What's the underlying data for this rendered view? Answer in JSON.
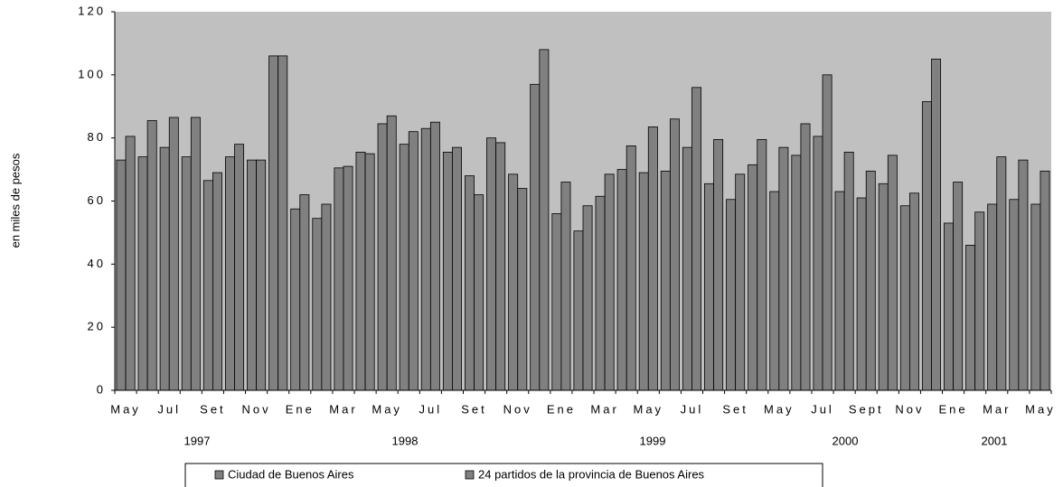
{
  "chart_data": {
    "type": "bar",
    "y_label": "en miles de pesos",
    "categories": [
      "May",
      null,
      "Jul",
      null,
      "Set",
      null,
      "Nov",
      null,
      "Ene",
      null,
      "Mar",
      null,
      "May",
      null,
      "Jul",
      null,
      "Set",
      null,
      "Nov",
      null,
      "Ene",
      null,
      "Mar",
      null,
      "May",
      null,
      "Jul",
      null,
      "Set",
      null,
      "May",
      null,
      "Jul",
      null,
      "Sept",
      null,
      "Nov",
      null,
      "Ene",
      null,
      "Mar",
      null,
      "May"
    ],
    "year_labels": [
      "1997",
      "1998",
      "1999",
      "2000",
      "2001"
    ],
    "series": [
      {
        "name": "Ciudad de Buenos Aires",
        "color": "#808080",
        "values": [
          73,
          74,
          77,
          74,
          66.5,
          74,
          73,
          106,
          57.5,
          54.5,
          70.5,
          75.5,
          84.5,
          78,
          83,
          75.5,
          68,
          80,
          68.5,
          97,
          56,
          50.5,
          61.5,
          70,
          69,
          69.5,
          77,
          65.5,
          60.5,
          71.5,
          63,
          74.5,
          80.5,
          63,
          61,
          65.5,
          58.5,
          91.5,
          53,
          46,
          59,
          60.5,
          59
        ]
      },
      {
        "name": "24 partidos de la provincia de Buenos Aires",
        "color": "#808080",
        "values": [
          80.5,
          85.5,
          86.5,
          86.5,
          69,
          78,
          73,
          106,
          62,
          59,
          71,
          75,
          87,
          82,
          85,
          77,
          62,
          78.5,
          64,
          108,
          66,
          58.5,
          68.5,
          77.5,
          83.5,
          86,
          96,
          79.5,
          68.5,
          79.5,
          77,
          84.5,
          100,
          75.5,
          69.5,
          74.5,
          62.5,
          105,
          66,
          56.5,
          74,
          73,
          69.5
        ]
      }
    ],
    "ylim": [
      0,
      120
    ],
    "yticks": [
      0,
      20,
      40,
      60,
      80,
      100,
      120
    ],
    "plot_background": "#c0c0c0"
  }
}
